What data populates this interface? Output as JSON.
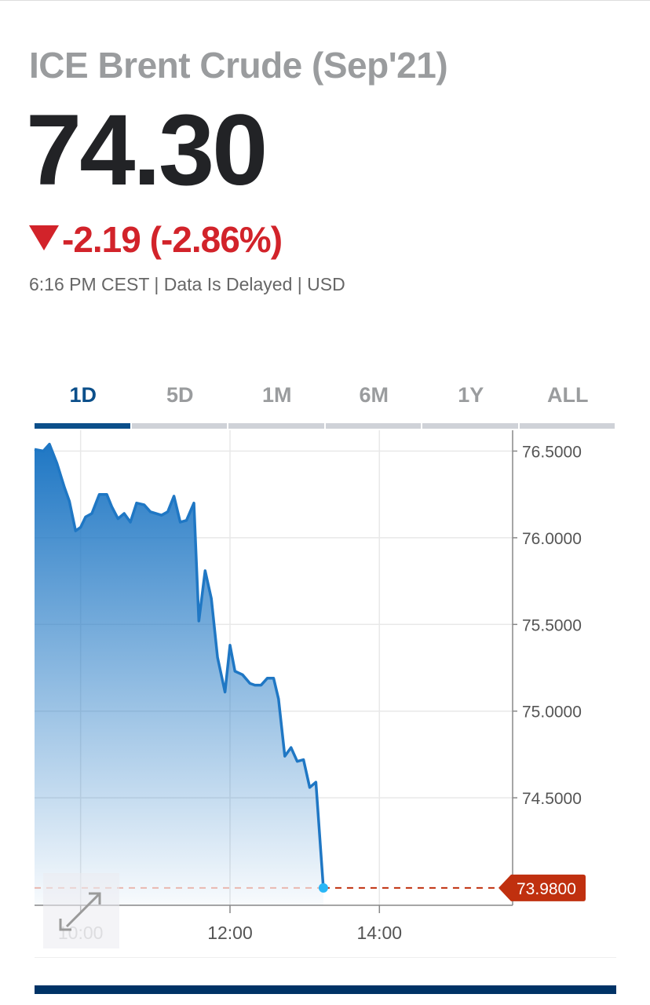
{
  "header": {
    "title": "ICE Brent Crude (Sep'21)",
    "price": "74.30",
    "change": "-2.19 (-2.86%)",
    "change_direction": "down",
    "meta": "6:16 PM CEST | Data Is Delayed | USD"
  },
  "tabs": [
    {
      "label": "1D",
      "active": true
    },
    {
      "label": "5D",
      "active": false
    },
    {
      "label": "1M",
      "active": false
    },
    {
      "label": "6M",
      "active": false
    },
    {
      "label": "1Y",
      "active": false
    },
    {
      "label": "ALL",
      "active": false
    }
  ],
  "icons": {
    "expand": "expand-arrows-icon"
  },
  "colors": {
    "line": "#1f77c4",
    "down": "#d2232a",
    "last_price_label": "#c0300f",
    "active_tab": "#0b4f8a",
    "marker": "#29b6f6"
  },
  "chart_data": {
    "type": "area",
    "xlabel": "",
    "ylabel": "",
    "x_ticks": [
      "10:00",
      "12:00",
      "14:00"
    ],
    "y_ticks": [
      "76.5000",
      "76.0000",
      "75.5000",
      "75.0000",
      "74.5000"
    ],
    "y_axis_position": "right",
    "xlim": [
      "9:23",
      "15:47"
    ],
    "ylim": [
      73.88,
      76.62
    ],
    "grid": true,
    "last_price_label": "73.9800",
    "last_value": 73.98,
    "x": [
      "9:23",
      "9:30",
      "9:35",
      "9:41",
      "9:47",
      "9:51",
      "9:56",
      "10:00",
      "10:04",
      "10:09",
      "10:15",
      "10:21",
      "10:25",
      "10:30",
      "10:35",
      "10:40",
      "10:45",
      "10:51",
      "10:56",
      "11:05",
      "11:10",
      "11:15",
      "11:20",
      "11:25",
      "11:31",
      "11:35",
      "11:40",
      "11:45",
      "11:50",
      "11:56",
      "12:00",
      "12:04",
      "12:10",
      "12:16",
      "12:20",
      "12:25",
      "12:30",
      "12:35",
      "12:39",
      "12:44",
      "12:49",
      "12:54",
      "12:59",
      "13:04",
      "13:09",
      "13:15"
    ],
    "y": [
      76.51,
      76.5,
      76.54,
      76.43,
      76.29,
      76.21,
      76.04,
      76.06,
      76.12,
      76.14,
      76.25,
      76.25,
      76.18,
      76.11,
      76.14,
      76.09,
      76.2,
      76.19,
      76.15,
      76.13,
      76.15,
      76.24,
      76.09,
      76.1,
      76.2,
      75.52,
      75.81,
      75.65,
      75.31,
      75.11,
      75.38,
      75.23,
      75.21,
      75.16,
      75.15,
      75.15,
      75.19,
      75.19,
      75.07,
      74.74,
      74.79,
      74.71,
      74.72,
      74.56,
      74.59,
      73.98
    ]
  }
}
